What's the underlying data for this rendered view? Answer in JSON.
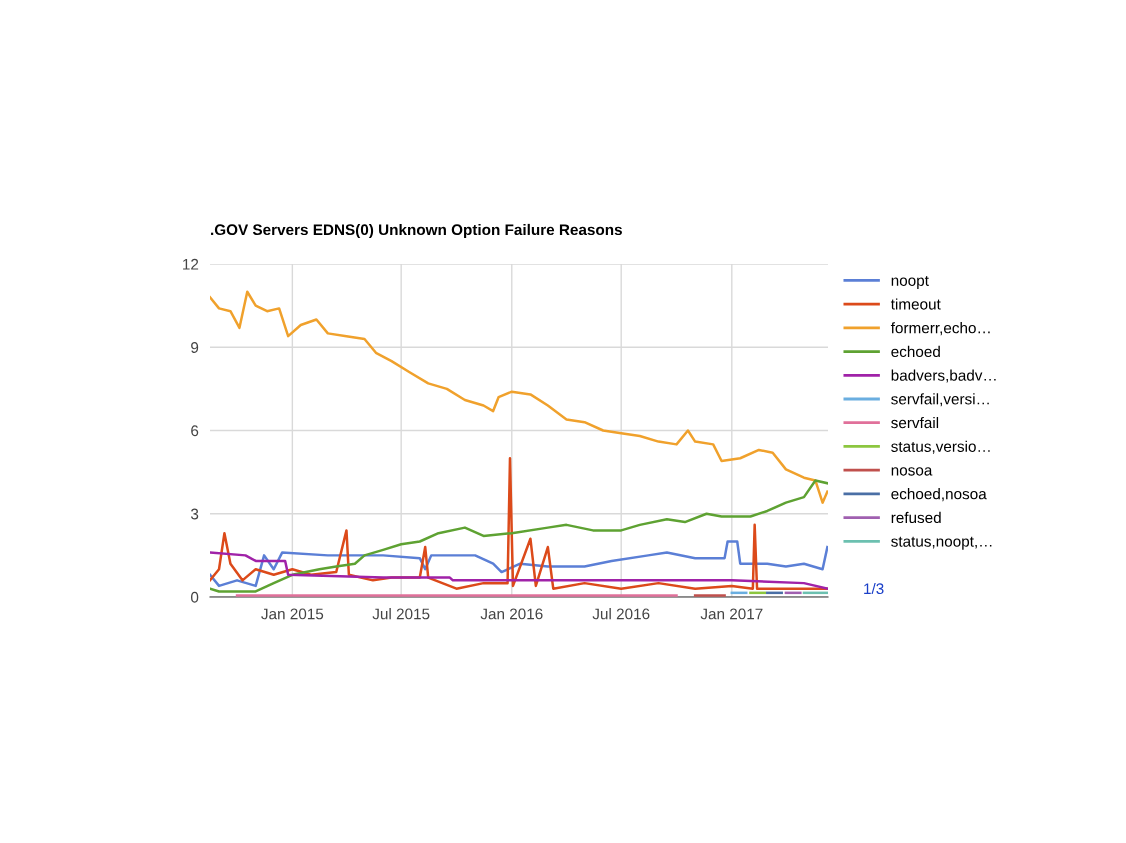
{
  "chart_data": {
    "type": "line",
    "title": ".GOV Servers EDNS(0) Unknown Option Failure Reasons",
    "annotations": [
      "1/3"
    ],
    "xlim": [
      "2014-08-17",
      "2017-06-10"
    ],
    "xticks": [
      {
        "value": "2015-01-01",
        "label": "Jan 2015"
      },
      {
        "value": "2015-07-01",
        "label": "Jul 2015"
      },
      {
        "value": "2016-01-01",
        "label": "Jan 2016"
      },
      {
        "value": "2016-07-01",
        "label": "Jul 2016"
      },
      {
        "value": "2017-01-01",
        "label": "Jan 2017"
      }
    ],
    "ylim": [
      0,
      12
    ],
    "yticks": [
      0,
      3,
      6,
      9,
      12
    ],
    "grid": true,
    "legend": "right",
    "marker": "none",
    "line_style": "solid",
    "series": [
      {
        "name": "noopt",
        "color": "#5b7fd6",
        "x": [
          "2014-08-17",
          "2014-09-01",
          "2014-10-01",
          "2014-11-01",
          "2014-11-15",
          "2014-12-01",
          "2014-12-15",
          "2015-03-01",
          "2015-06-01",
          "2015-08-01",
          "2015-08-10",
          "2015-08-20",
          "2015-11-01",
          "2015-12-01",
          "2015-12-15",
          "2016-01-15",
          "2016-03-01",
          "2016-05-01",
          "2016-06-15",
          "2016-08-15",
          "2016-09-15",
          "2016-11-01",
          "2016-12-20",
          "2016-12-25",
          "2017-01-10",
          "2017-01-15",
          "2017-03-01",
          "2017-04-01",
          "2017-05-01",
          "2017-06-01",
          "2017-06-09"
        ],
        "values": [
          0.8,
          0.4,
          0.6,
          0.4,
          1.5,
          1.0,
          1.6,
          1.5,
          1.5,
          1.4,
          1.0,
          1.5,
          1.5,
          1.2,
          0.9,
          1.2,
          1.1,
          1.1,
          1.3,
          1.5,
          1.6,
          1.4,
          1.4,
          2.0,
          2.0,
          1.2,
          1.2,
          1.1,
          1.2,
          1.0,
          1.8
        ]
      },
      {
        "name": "timeout",
        "color": "#dc4a1a",
        "x": [
          "2014-08-17",
          "2014-09-01",
          "2014-09-10",
          "2014-09-20",
          "2014-10-10",
          "2014-11-01",
          "2014-12-01",
          "2015-01-01",
          "2015-02-01",
          "2015-03-15",
          "2015-04-01",
          "2015-04-05",
          "2015-05-15",
          "2015-06-15",
          "2015-08-01",
          "2015-08-10",
          "2015-08-15",
          "2015-10-01",
          "2015-11-15",
          "2015-12-25",
          "2015-12-29",
          "2016-01-03",
          "2016-02-01",
          "2016-02-10",
          "2016-03-01",
          "2016-03-10",
          "2016-05-01",
          "2016-07-01",
          "2016-09-01",
          "2016-11-01",
          "2017-01-01",
          "2017-02-05",
          "2017-02-08",
          "2017-02-12",
          "2017-04-01",
          "2017-06-09"
        ],
        "values": [
          0.6,
          1.0,
          2.3,
          1.2,
          0.6,
          1.0,
          0.8,
          1.0,
          0.8,
          0.9,
          2.4,
          0.8,
          0.6,
          0.7,
          0.7,
          1.8,
          0.7,
          0.3,
          0.5,
          0.5,
          5.0,
          0.4,
          2.1,
          0.4,
          1.8,
          0.3,
          0.5,
          0.3,
          0.5,
          0.3,
          0.4,
          0.3,
          2.6,
          0.3,
          0.3,
          0.3
        ]
      },
      {
        "name": "formerr,echo…",
        "color": "#f0a12c",
        "x": [
          "2014-08-17",
          "2014-09-01",
          "2014-09-20",
          "2014-10-05",
          "2014-10-18",
          "2014-11-01",
          "2014-11-20",
          "2014-12-10",
          "2014-12-25",
          "2015-01-15",
          "2015-02-10",
          "2015-03-01",
          "2015-04-01",
          "2015-05-01",
          "2015-05-20",
          "2015-06-15",
          "2015-07-15",
          "2015-08-15",
          "2015-09-15",
          "2015-10-15",
          "2015-11-15",
          "2015-12-01",
          "2015-12-10",
          "2016-01-01",
          "2016-02-01",
          "2016-03-01",
          "2016-04-01",
          "2016-05-01",
          "2016-06-01",
          "2016-07-01",
          "2016-08-01",
          "2016-09-01",
          "2016-10-01",
          "2016-10-20",
          "2016-11-01",
          "2016-12-01",
          "2016-12-15",
          "2017-01-15",
          "2017-02-15",
          "2017-03-10",
          "2017-04-01",
          "2017-05-01",
          "2017-05-20",
          "2017-06-01",
          "2017-06-09"
        ],
        "values": [
          10.8,
          10.4,
          10.3,
          9.7,
          11.0,
          10.5,
          10.3,
          10.4,
          9.4,
          9.8,
          10.0,
          9.5,
          9.4,
          9.3,
          8.8,
          8.5,
          8.1,
          7.7,
          7.5,
          7.1,
          6.9,
          6.7,
          7.2,
          7.4,
          7.3,
          6.9,
          6.4,
          6.3,
          6.0,
          5.9,
          5.8,
          5.6,
          5.5,
          6.0,
          5.6,
          5.5,
          4.9,
          5.0,
          5.3,
          5.2,
          4.6,
          4.3,
          4.2,
          3.4,
          3.8
        ]
      },
      {
        "name": "echoed",
        "color": "#5ea232",
        "x": [
          "2014-08-17",
          "2014-09-01",
          "2014-11-01",
          "2014-12-01",
          "2015-01-01",
          "2015-02-15",
          "2015-03-15",
          "2015-04-15",
          "2015-05-01",
          "2015-06-01",
          "2015-07-01",
          "2015-08-01",
          "2015-09-01",
          "2015-10-15",
          "2015-11-15",
          "2016-01-01",
          "2016-03-01",
          "2016-04-01",
          "2016-05-15",
          "2016-07-01",
          "2016-08-01",
          "2016-09-15",
          "2016-10-15",
          "2016-11-20",
          "2016-12-15",
          "2017-02-01",
          "2017-03-01",
          "2017-04-01",
          "2017-05-01",
          "2017-05-20",
          "2017-06-09"
        ],
        "values": [
          0.3,
          0.2,
          0.2,
          0.5,
          0.8,
          1.0,
          1.1,
          1.2,
          1.5,
          1.7,
          1.9,
          2.0,
          2.3,
          2.5,
          2.2,
          2.3,
          2.5,
          2.6,
          2.4,
          2.4,
          2.6,
          2.8,
          2.7,
          3.0,
          2.9,
          2.9,
          3.1,
          3.4,
          3.6,
          4.2,
          4.1
        ]
      },
      {
        "name": "badvers,badv…",
        "color": "#a022a8",
        "x": [
          "2014-08-17",
          "2014-10-15",
          "2014-11-01",
          "2014-12-20",
          "2014-12-25",
          "2015-06-01",
          "2015-09-20",
          "2015-09-25",
          "2016-06-01",
          "2016-10-01",
          "2017-01-01",
          "2017-05-01",
          "2017-06-09"
        ],
        "values": [
          1.6,
          1.5,
          1.3,
          1.3,
          0.8,
          0.7,
          0.7,
          0.6,
          0.6,
          0.6,
          0.6,
          0.5,
          0.3
        ]
      },
      {
        "name": "servfail,versi…",
        "color": "#6aaee0",
        "x": [
          "2017-01-01",
          "2017-01-25"
        ],
        "values": [
          0.15,
          0.15
        ]
      },
      {
        "name": "servfail",
        "color": "#e0709a",
        "x": [
          "2014-10-01",
          "2015-06-01",
          "2016-03-01",
          "2016-10-01"
        ],
        "values": [
          0.05,
          0.05,
          0.05,
          0.05
        ]
      },
      {
        "name": "status,versio…",
        "color": "#8cc63f",
        "x": [
          "2017-02-01",
          "2017-02-25"
        ],
        "values": [
          0.15,
          0.15
        ]
      },
      {
        "name": "nosoa",
        "color": "#c0504d",
        "x": [
          "2016-11-01",
          "2016-12-20"
        ],
        "values": [
          0.05,
          0.05
        ]
      },
      {
        "name": "echoed,nosoa",
        "color": "#4a6fa5",
        "x": [
          "2017-03-01",
          "2017-03-25"
        ],
        "values": [
          0.15,
          0.15
        ]
      },
      {
        "name": "refused",
        "color": "#a060b0",
        "x": [
          "2017-04-01",
          "2017-04-25"
        ],
        "values": [
          0.15,
          0.15
        ]
      },
      {
        "name": "status,noopt,…",
        "color": "#6cc0b0",
        "x": [
          "2017-05-01",
          "2017-06-09"
        ],
        "values": [
          0.15,
          0.15
        ]
      }
    ]
  }
}
